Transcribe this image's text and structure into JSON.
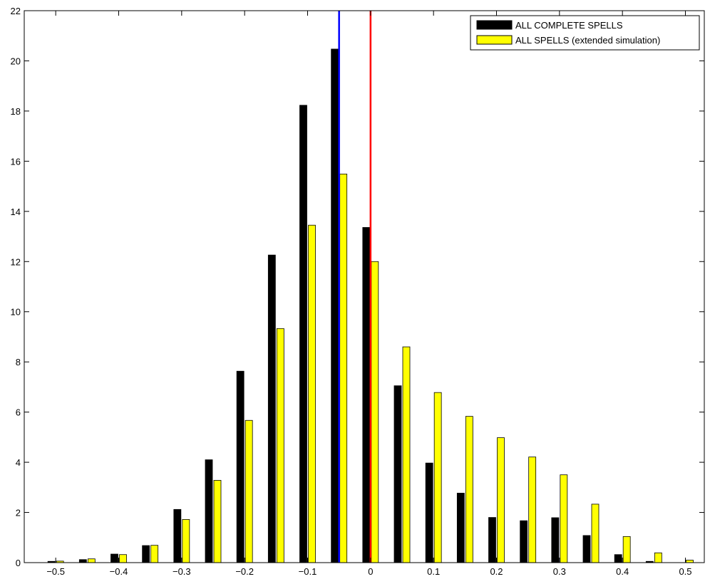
{
  "chart_data": {
    "type": "bar",
    "categories": [
      -0.5,
      -0.45,
      -0.4,
      -0.35,
      -0.3,
      -0.25,
      -0.2,
      -0.15,
      -0.1,
      -0.05,
      0,
      0.05,
      0.1,
      0.15,
      0.2,
      0.25,
      0.3,
      0.35,
      0.4,
      0.45,
      0.5
    ],
    "series": [
      {
        "name": "ALL COMPLETE SPELLS",
        "color": "#000000",
        "values": [
          0.05,
          0.12,
          0.34,
          0.68,
          2.12,
          4.1,
          7.63,
          12.26,
          18.23,
          20.47,
          13.36,
          7.05,
          3.97,
          2.77,
          1.8,
          1.67,
          1.79,
          1.08,
          0.32,
          0.05,
          0.0
        ]
      },
      {
        "name": "ALL SPELLS (extended simulation)",
        "color": "#ffff00",
        "values": [
          0.06,
          0.15,
          0.32,
          0.69,
          1.72,
          3.28,
          5.67,
          9.33,
          13.45,
          15.49,
          12.0,
          8.6,
          6.78,
          5.83,
          4.98,
          4.21,
          3.5,
          2.33,
          1.04,
          0.39,
          0.1
        ]
      }
    ],
    "reference_lines": [
      {
        "x": -0.05,
        "color": "#0000ff"
      },
      {
        "x": 0,
        "color": "#ff0000"
      }
    ],
    "xlim": [
      -0.55,
      0.53
    ],
    "ylim": [
      0,
      22
    ],
    "xticks": [
      -0.5,
      -0.4,
      -0.3,
      -0.2,
      -0.1,
      0,
      0.1,
      0.2,
      0.3,
      0.4,
      0.5
    ],
    "xtick_labels": [
      "−0.5",
      "−0.4",
      "−0.3",
      "−0.2",
      "−0.1",
      "0",
      "0.1",
      "0.2",
      "0.3",
      "0.4",
      "0.5"
    ],
    "yticks": [
      0,
      2,
      4,
      6,
      8,
      10,
      12,
      14,
      16,
      18,
      20,
      22
    ],
    "ytick_labels": [
      "0",
      "2",
      "4",
      "6",
      "8",
      "10",
      "12",
      "14",
      "16",
      "18",
      "20",
      "22"
    ],
    "legend_position": "top-right",
    "grid": false,
    "title": "",
    "xlabel": "",
    "ylabel": ""
  }
}
